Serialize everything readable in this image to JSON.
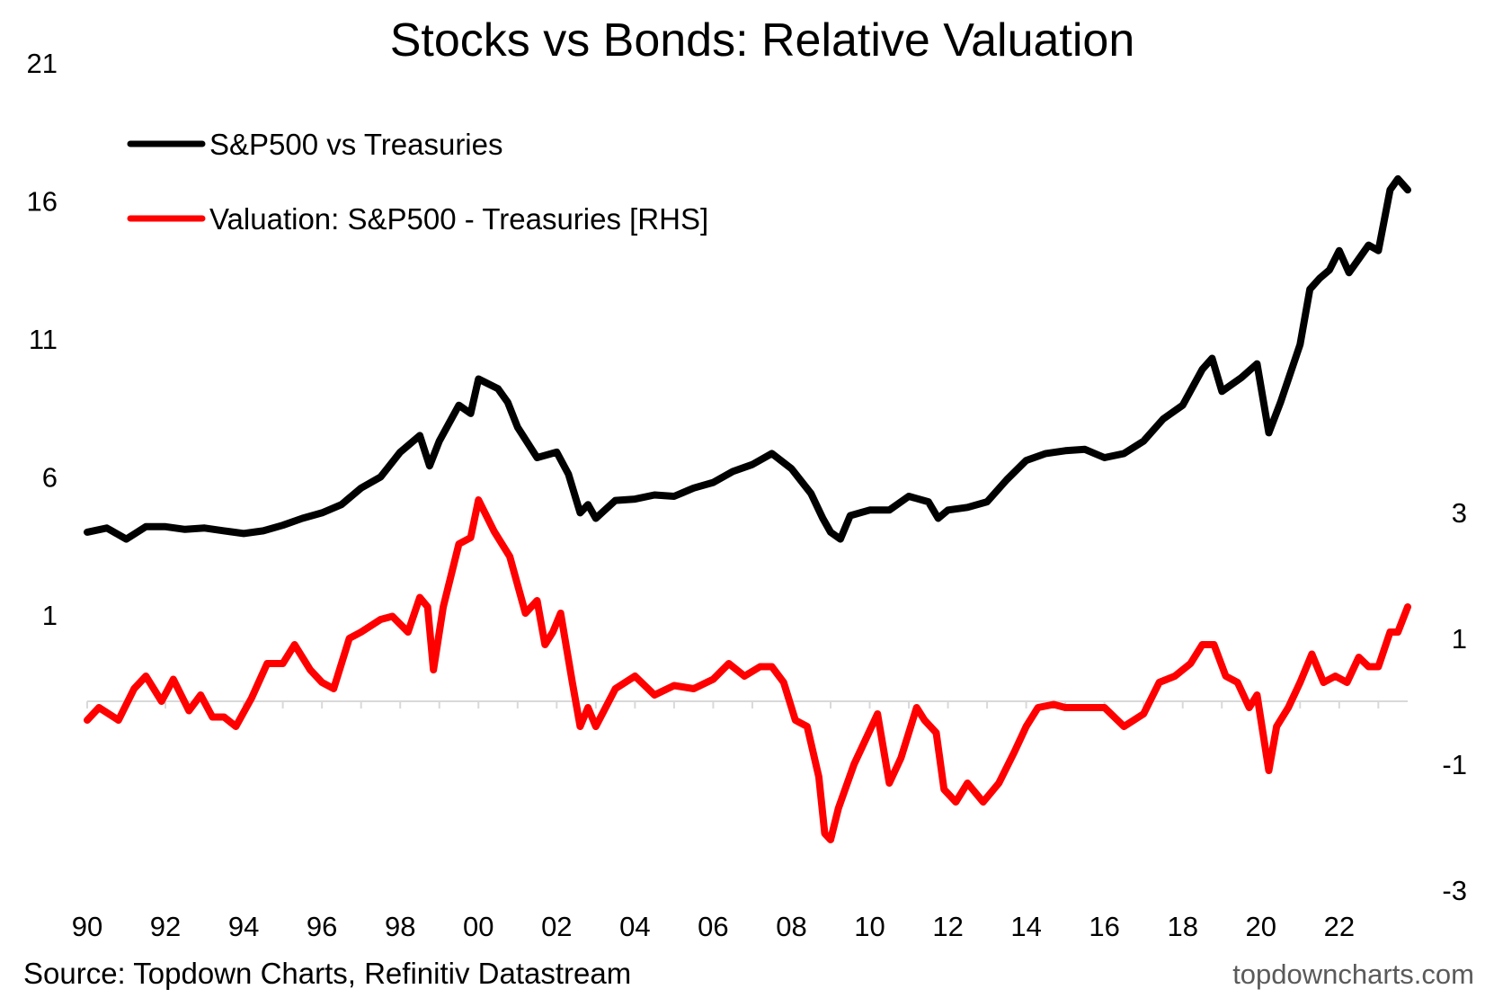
{
  "colors": {
    "stocks_vs_treasuries": "#000000",
    "valuation": "#ff0000",
    "zero_line": "#d9d9d9"
  },
  "footer": {
    "source": "Source: Topdown Charts, Refinitiv Datastream",
    "brand": "topdowncharts.com"
  },
  "chart_data": {
    "type": "line",
    "title": "Stocks vs Bonds: Relative Valuation",
    "x_tick_labels": [
      "90",
      "92",
      "94",
      "96",
      "98",
      "00",
      "02",
      "04",
      "06",
      "08",
      "10",
      "12",
      "14",
      "16",
      "18",
      "20",
      "22"
    ],
    "x_range": [
      1990,
      2023.75
    ],
    "y_left": {
      "ticks": [
        21,
        16,
        11,
        6,
        1
      ],
      "range": [
        1,
        21
      ]
    },
    "y_right": {
      "ticks": [
        3,
        1,
        -1,
        -3
      ],
      "range": [
        -3,
        3
      ]
    },
    "legend": {
      "placement": "top-left"
    },
    "series": [
      {
        "name": "S&P500 vs Treasuries",
        "axis": "left",
        "color": "#000000",
        "points": [
          [
            1990,
            4.0
          ],
          [
            1990.5,
            4.15
          ],
          [
            1991,
            3.75
          ],
          [
            1991.5,
            4.2
          ],
          [
            1992,
            4.2
          ],
          [
            1992.5,
            4.1
          ],
          [
            1993,
            4.15
          ],
          [
            1993.5,
            4.05
          ],
          [
            1994,
            3.95
          ],
          [
            1994.5,
            4.05
          ],
          [
            1995,
            4.25
          ],
          [
            1995.5,
            4.5
          ],
          [
            1996,
            4.7
          ],
          [
            1996.5,
            5.0
          ],
          [
            1997,
            5.6
          ],
          [
            1997.5,
            6.0
          ],
          [
            1998,
            6.9
          ],
          [
            1998.5,
            7.5
          ],
          [
            1998.75,
            6.4
          ],
          [
            1999,
            7.3
          ],
          [
            1999.5,
            8.6
          ],
          [
            1999.8,
            8.3
          ],
          [
            2000,
            9.55
          ],
          [
            2000.5,
            9.2
          ],
          [
            2000.75,
            8.7
          ],
          [
            2001,
            7.8
          ],
          [
            2001.5,
            6.7
          ],
          [
            2002,
            6.9
          ],
          [
            2002.3,
            6.1
          ],
          [
            2002.6,
            4.7
          ],
          [
            2002.8,
            5.0
          ],
          [
            2003,
            4.5
          ],
          [
            2003.5,
            5.15
          ],
          [
            2004,
            5.2
          ],
          [
            2004.5,
            5.35
          ],
          [
            2005,
            5.3
          ],
          [
            2005.5,
            5.6
          ],
          [
            2006,
            5.8
          ],
          [
            2006.5,
            6.2
          ],
          [
            2007,
            6.45
          ],
          [
            2007.5,
            6.85
          ],
          [
            2008,
            6.3
          ],
          [
            2008.5,
            5.4
          ],
          [
            2008.8,
            4.5
          ],
          [
            2009,
            4.0
          ],
          [
            2009.25,
            3.75
          ],
          [
            2009.5,
            4.6
          ],
          [
            2010,
            4.8
          ],
          [
            2010.5,
            4.8
          ],
          [
            2011,
            5.3
          ],
          [
            2011.5,
            5.1
          ],
          [
            2011.75,
            4.5
          ],
          [
            2012,
            4.8
          ],
          [
            2012.5,
            4.9
          ],
          [
            2013,
            5.1
          ],
          [
            2013.5,
            5.9
          ],
          [
            2014,
            6.6
          ],
          [
            2014.5,
            6.85
          ],
          [
            2015,
            6.95
          ],
          [
            2015.5,
            7.0
          ],
          [
            2016,
            6.7
          ],
          [
            2016.5,
            6.85
          ],
          [
            2017,
            7.3
          ],
          [
            2017.5,
            8.1
          ],
          [
            2018,
            8.6
          ],
          [
            2018.5,
            9.9
          ],
          [
            2018.75,
            10.3
          ],
          [
            2019,
            9.1
          ],
          [
            2019.5,
            9.6
          ],
          [
            2019.9,
            10.1
          ],
          [
            2020.2,
            7.6
          ],
          [
            2020.5,
            8.7
          ],
          [
            2021,
            10.8
          ],
          [
            2021.25,
            12.8
          ],
          [
            2021.5,
            13.2
          ],
          [
            2021.75,
            13.5
          ],
          [
            2022,
            14.2
          ],
          [
            2022.25,
            13.4
          ],
          [
            2022.5,
            13.9
          ],
          [
            2022.75,
            14.4
          ],
          [
            2023,
            14.2
          ],
          [
            2023.3,
            16.4
          ],
          [
            2023.5,
            16.8
          ],
          [
            2023.75,
            16.4
          ]
        ]
      },
      {
        "name": "Valuation: S&P500 - Treasuries [RHS]",
        "axis": "right",
        "color": "#ff0000",
        "points": [
          [
            1990,
            -0.3
          ],
          [
            1990.3,
            -0.1
          ],
          [
            1990.8,
            -0.3
          ],
          [
            1991.2,
            0.2
          ],
          [
            1991.5,
            0.4
          ],
          [
            1991.9,
            0.0
          ],
          [
            1992.2,
            0.35
          ],
          [
            1992.6,
            -0.15
          ],
          [
            1992.9,
            0.1
          ],
          [
            1993.2,
            -0.25
          ],
          [
            1993.5,
            -0.25
          ],
          [
            1993.8,
            -0.4
          ],
          [
            1994.2,
            0.05
          ],
          [
            1994.6,
            0.6
          ],
          [
            1995,
            0.6
          ],
          [
            1995.3,
            0.9
          ],
          [
            1995.7,
            0.5
          ],
          [
            1996,
            0.3
          ],
          [
            1996.3,
            0.2
          ],
          [
            1996.7,
            1.0
          ],
          [
            1997,
            1.1
          ],
          [
            1997.5,
            1.3
          ],
          [
            1997.8,
            1.35
          ],
          [
            1998.2,
            1.1
          ],
          [
            1998.5,
            1.65
          ],
          [
            1998.7,
            1.5
          ],
          [
            1998.85,
            0.5
          ],
          [
            1999.1,
            1.5
          ],
          [
            1999.5,
            2.5
          ],
          [
            1999.8,
            2.6
          ],
          [
            2000,
            3.2
          ],
          [
            2000.4,
            2.7
          ],
          [
            2000.8,
            2.3
          ],
          [
            2001.2,
            1.4
          ],
          [
            2001.5,
            1.6
          ],
          [
            2001.7,
            0.9
          ],
          [
            2001.9,
            1.1
          ],
          [
            2002.1,
            1.4
          ],
          [
            2002.4,
            0.3
          ],
          [
            2002.6,
            -0.4
          ],
          [
            2002.8,
            -0.1
          ],
          [
            2003,
            -0.4
          ],
          [
            2003.5,
            0.2
          ],
          [
            2004,
            0.4
          ],
          [
            2004.5,
            0.1
          ],
          [
            2005,
            0.25
          ],
          [
            2005.5,
            0.2
          ],
          [
            2006,
            0.35
          ],
          [
            2006.4,
            0.6
          ],
          [
            2006.8,
            0.4
          ],
          [
            2007.2,
            0.55
          ],
          [
            2007.5,
            0.55
          ],
          [
            2007.8,
            0.3
          ],
          [
            2008.1,
            -0.3
          ],
          [
            2008.4,
            -0.4
          ],
          [
            2008.7,
            -1.2
          ],
          [
            2008.85,
            -2.1
          ],
          [
            2009,
            -2.2
          ],
          [
            2009.2,
            -1.7
          ],
          [
            2009.6,
            -1.0
          ],
          [
            2009.9,
            -0.6
          ],
          [
            2010.2,
            -0.2
          ],
          [
            2010.5,
            -1.3
          ],
          [
            2010.8,
            -0.9
          ],
          [
            2011.2,
            -0.1
          ],
          [
            2011.4,
            -0.3
          ],
          [
            2011.7,
            -0.5
          ],
          [
            2011.9,
            -1.4
          ],
          [
            2012.2,
            -1.6
          ],
          [
            2012.5,
            -1.3
          ],
          [
            2012.9,
            -1.6
          ],
          [
            2013.3,
            -1.3
          ],
          [
            2013.7,
            -0.8
          ],
          [
            2014,
            -0.4
          ],
          [
            2014.3,
            -0.1
          ],
          [
            2014.7,
            -0.05
          ],
          [
            2015,
            -0.1
          ],
          [
            2015.5,
            -0.1
          ],
          [
            2016,
            -0.1
          ],
          [
            2016.5,
            -0.4
          ],
          [
            2017,
            -0.2
          ],
          [
            2017.4,
            0.3
          ],
          [
            2017.8,
            0.4
          ],
          [
            2018.2,
            0.6
          ],
          [
            2018.5,
            0.9
          ],
          [
            2018.8,
            0.9
          ],
          [
            2019.1,
            0.4
          ],
          [
            2019.4,
            0.3
          ],
          [
            2019.7,
            -0.1
          ],
          [
            2019.9,
            0.1
          ],
          [
            2020.2,
            -1.1
          ],
          [
            2020.4,
            -0.4
          ],
          [
            2020.7,
            -0.1
          ],
          [
            2021,
            0.3
          ],
          [
            2021.3,
            0.75
          ],
          [
            2021.6,
            0.3
          ],
          [
            2021.9,
            0.4
          ],
          [
            2022.2,
            0.3
          ],
          [
            2022.5,
            0.7
          ],
          [
            2022.75,
            0.55
          ],
          [
            2023,
            0.55
          ],
          [
            2023.3,
            1.1
          ],
          [
            2023.5,
            1.1
          ],
          [
            2023.75,
            1.5
          ]
        ]
      }
    ]
  }
}
